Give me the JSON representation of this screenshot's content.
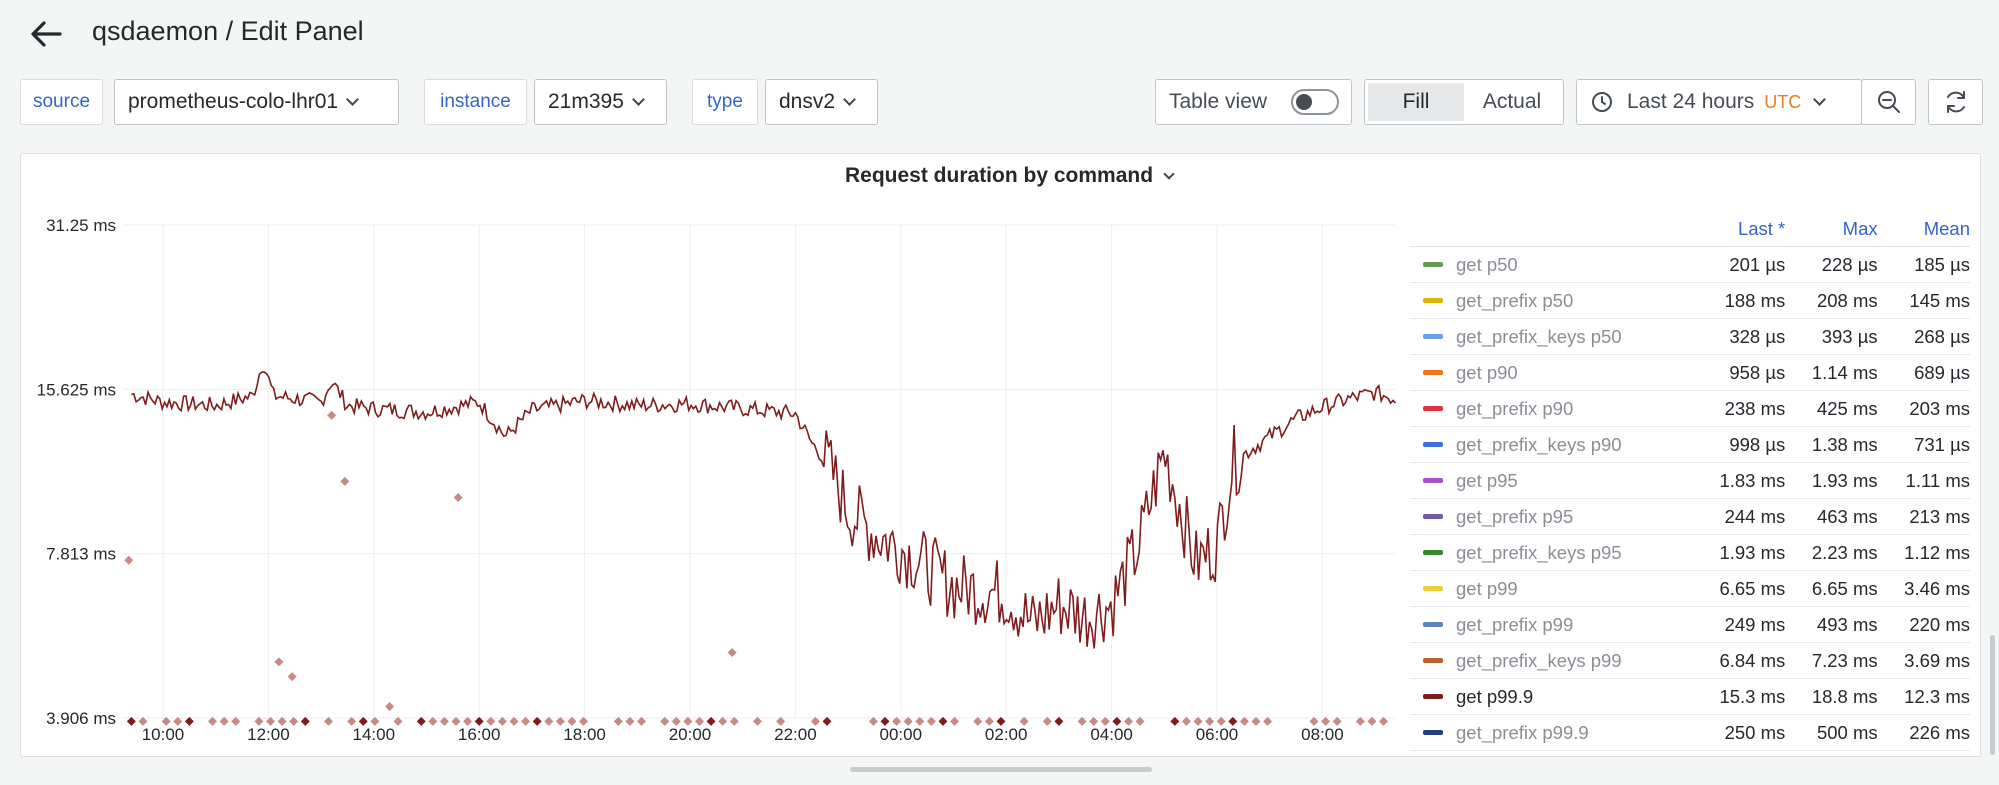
{
  "header": {
    "title": "qsdaemon / Edit Panel"
  },
  "variables": [
    {
      "label": "source",
      "value": "prometheus-colo-lhr01"
    },
    {
      "label": "instance",
      "value": "21m395"
    },
    {
      "label": "type",
      "value": "dnsv2"
    }
  ],
  "toolbar": {
    "table_view_label": "Table view",
    "table_view_on": false,
    "fill_label": "Fill",
    "actual_label": "Actual",
    "time_range": "Last 24 hours",
    "timezone": "UTC"
  },
  "panel": {
    "title": "Request duration by command"
  },
  "chart_data": {
    "type": "line",
    "title": "Request duration by command",
    "y_scale": "log2",
    "y_ticks": [
      "31.25 ms",
      "15.625 ms",
      "7.813 ms",
      "3.906 ms"
    ],
    "y_tick_values_ms": [
      31.25,
      15.625,
      7.813,
      3.906
    ],
    "x_ticks": [
      "10:00",
      "12:00",
      "14:00",
      "16:00",
      "18:00",
      "20:00",
      "22:00",
      "00:00",
      "02:00",
      "04:00",
      "06:00",
      "08:00"
    ],
    "grid": true,
    "legend_position": "right",
    "series_line": {
      "name": "get p99.9",
      "color": "#7f1d1d",
      "x_hours": [
        9.4,
        10,
        11,
        11.7,
        11.9,
        12.1,
        13,
        13.2,
        13.5,
        14,
        15,
        16,
        16.5,
        17,
        18,
        19,
        20,
        21,
        22,
        22.3,
        22.6,
        23,
        23.5,
        24,
        25,
        26,
        26.5,
        27,
        27.5,
        28,
        28.5,
        29,
        29.3,
        29.6,
        30,
        30.3,
        31,
        31.5,
        32,
        32.5,
        33,
        33.4
      ],
      "values_ms": [
        15.3,
        14.8,
        14.6,
        15.2,
        17.6,
        15.2,
        14.8,
        16.2,
        14.6,
        14.4,
        14.2,
        14.8,
        12.8,
        14.3,
        14.9,
        14.6,
        14.7,
        14.4,
        14.1,
        12.5,
        11.5,
        9.4,
        8.5,
        8.0,
        6.8,
        6.6,
        5.8,
        6.3,
        6.0,
        6.3,
        8.0,
        12.0,
        9.5,
        7.5,
        8.1,
        11.5,
        12.8,
        13.8,
        14.5,
        15.0,
        15.4,
        15.0
      ]
    },
    "series_scatter": {
      "name": "get p99.9",
      "color": "#c88a85",
      "x_hours": [
        9.35,
        12.2,
        12.45,
        13.2,
        13.45,
        14.3,
        15.6,
        20.8
      ],
      "values_ms": [
        7.6,
        4.95,
        4.65,
        14.0,
        10.6,
        4.1,
        9.9,
        5.15
      ],
      "baseline_ms": 3.85
    }
  },
  "legend": {
    "columns": [
      "Last *",
      "Max",
      "Mean"
    ],
    "rows": [
      {
        "name": "get p50",
        "color": "#629e51",
        "last": "201 µs",
        "max": "228 µs",
        "mean": "185 µs",
        "active": false
      },
      {
        "name": "get_prefix p50",
        "color": "#e0b400",
        "last": "188 ms",
        "max": "208 ms",
        "mean": "145 ms",
        "active": false
      },
      {
        "name": "get_prefix_keys p50",
        "color": "#6d9eeb",
        "last": "328 µs",
        "max": "393 µs",
        "mean": "268 µs",
        "active": false
      },
      {
        "name": "get p90",
        "color": "#f2711c",
        "last": "958 µs",
        "max": "1.14 ms",
        "mean": "689 µs",
        "active": false
      },
      {
        "name": "get_prefix p90",
        "color": "#e0313f",
        "last": "238 ms",
        "max": "425 ms",
        "mean": "203 ms",
        "active": false
      },
      {
        "name": "get_prefix_keys p90",
        "color": "#3d71d9",
        "last": "998 µs",
        "max": "1.38 ms",
        "mean": "731 µs",
        "active": false
      },
      {
        "name": "get p95",
        "color": "#a352cc",
        "last": "1.83 ms",
        "max": "1.93 ms",
        "mean": "1.11 ms",
        "active": false
      },
      {
        "name": "get_prefix p95",
        "color": "#7259a6",
        "last": "244 ms",
        "max": "463 ms",
        "mean": "213 ms",
        "active": false
      },
      {
        "name": "get_prefix_keys p95",
        "color": "#37872d",
        "last": "1.93 ms",
        "max": "2.23 ms",
        "mean": "1.12 ms",
        "active": false
      },
      {
        "name": "get p99",
        "color": "#f4cc35",
        "last": "6.65 ms",
        "max": "6.65 ms",
        "mean": "3.46 ms",
        "active": false
      },
      {
        "name": "get_prefix p99",
        "color": "#5b84bd",
        "last": "249 ms",
        "max": "493 ms",
        "mean": "220 ms",
        "active": false
      },
      {
        "name": "get_prefix_keys p99",
        "color": "#b8632e",
        "last": "6.84 ms",
        "max": "7.23 ms",
        "mean": "3.69 ms",
        "active": false
      },
      {
        "name": "get p99.9",
        "color": "#7f1d1d",
        "last": "15.3 ms",
        "max": "18.8 ms",
        "mean": "12.3 ms",
        "active": true
      },
      {
        "name": "get_prefix p99.9",
        "color": "#1f3f7a",
        "last": "250 ms",
        "max": "500 ms",
        "mean": "226 ms",
        "active": false
      }
    ]
  },
  "icons": {
    "back": "arrow-left-icon",
    "clock": "clock-icon",
    "zoom": "zoom-out-icon",
    "refresh": "refresh-icon"
  }
}
